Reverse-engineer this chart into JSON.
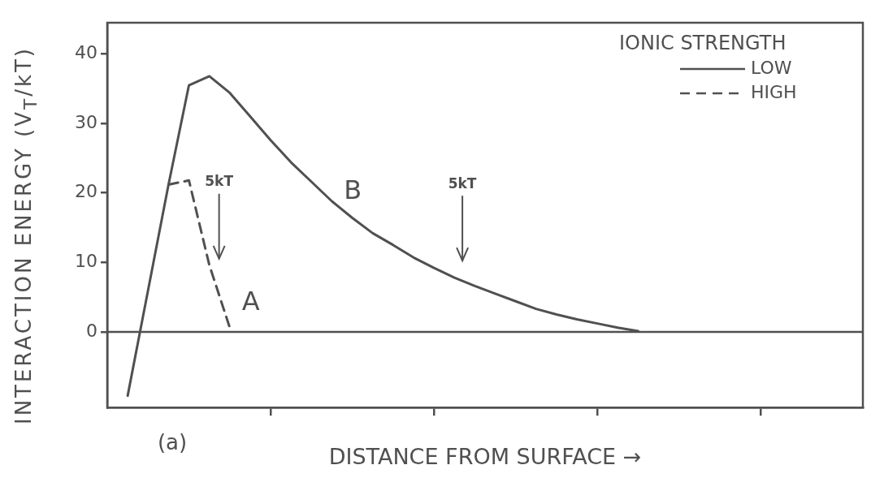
{
  "chart_data": {
    "type": "line",
    "xlabel": "DISTANCE FROM SURFACE →",
    "ylabel": "INTERACTION ENERGY (V$_{T}$/kT)",
    "legend_title": "IONIC STRENGTH",
    "legend": "top right",
    "grid": false,
    "marker": "none",
    "categories": [
      null,
      null,
      null,
      null,
      null,
      null,
      null,
      null,
      null,
      null,
      null,
      null,
      null,
      null,
      null,
      null,
      null,
      null,
      null,
      null,
      null,
      null,
      null,
      null,
      null,
      null,
      null,
      null,
      null,
      null,
      null,
      null,
      null,
      null,
      null,
      null,
      null,
      null
    ],
    "ylim": [
      -10.9,
      44.5
    ],
    "yticks": [
      0,
      10,
      20,
      30,
      40
    ],
    "series": [
      {
        "name": "LOW",
        "color": "#505050",
        "line_style": "solid",
        "values": [
          null,
          -9.2,
          6.0,
          21.2,
          35.5,
          36.8,
          34.4,
          31.0,
          27.6,
          24.4,
          21.6,
          18.8,
          16.4,
          14.2,
          12.5,
          10.7,
          9.2,
          7.8,
          6.6,
          5.5,
          4.4,
          3.3,
          2.5,
          1.8,
          1.2,
          0.6,
          0.1,
          null,
          null,
          null,
          null,
          null,
          null,
          null,
          null,
          null,
          null,
          null
        ]
      },
      {
        "name": "HIGH",
        "color": "#505050",
        "line_style": "dashed",
        "values": [
          null,
          null,
          null,
          21.2,
          21.8,
          9.6,
          0.6,
          null,
          null,
          null,
          null,
          null,
          null,
          null,
          null,
          null,
          null,
          null,
          null,
          null,
          null,
          null,
          null,
          null,
          null,
          null,
          null,
          null,
          null,
          null,
          null,
          null,
          null,
          null,
          null,
          null,
          null,
          null
        ]
      }
    ],
    "ref_lines": [
      {
        "axis": "y",
        "value": 0,
        "color": "#505050"
      }
    ],
    "annotations": [
      "5kT",
      "5kT",
      "A",
      "B",
      "(a)"
    ]
  }
}
